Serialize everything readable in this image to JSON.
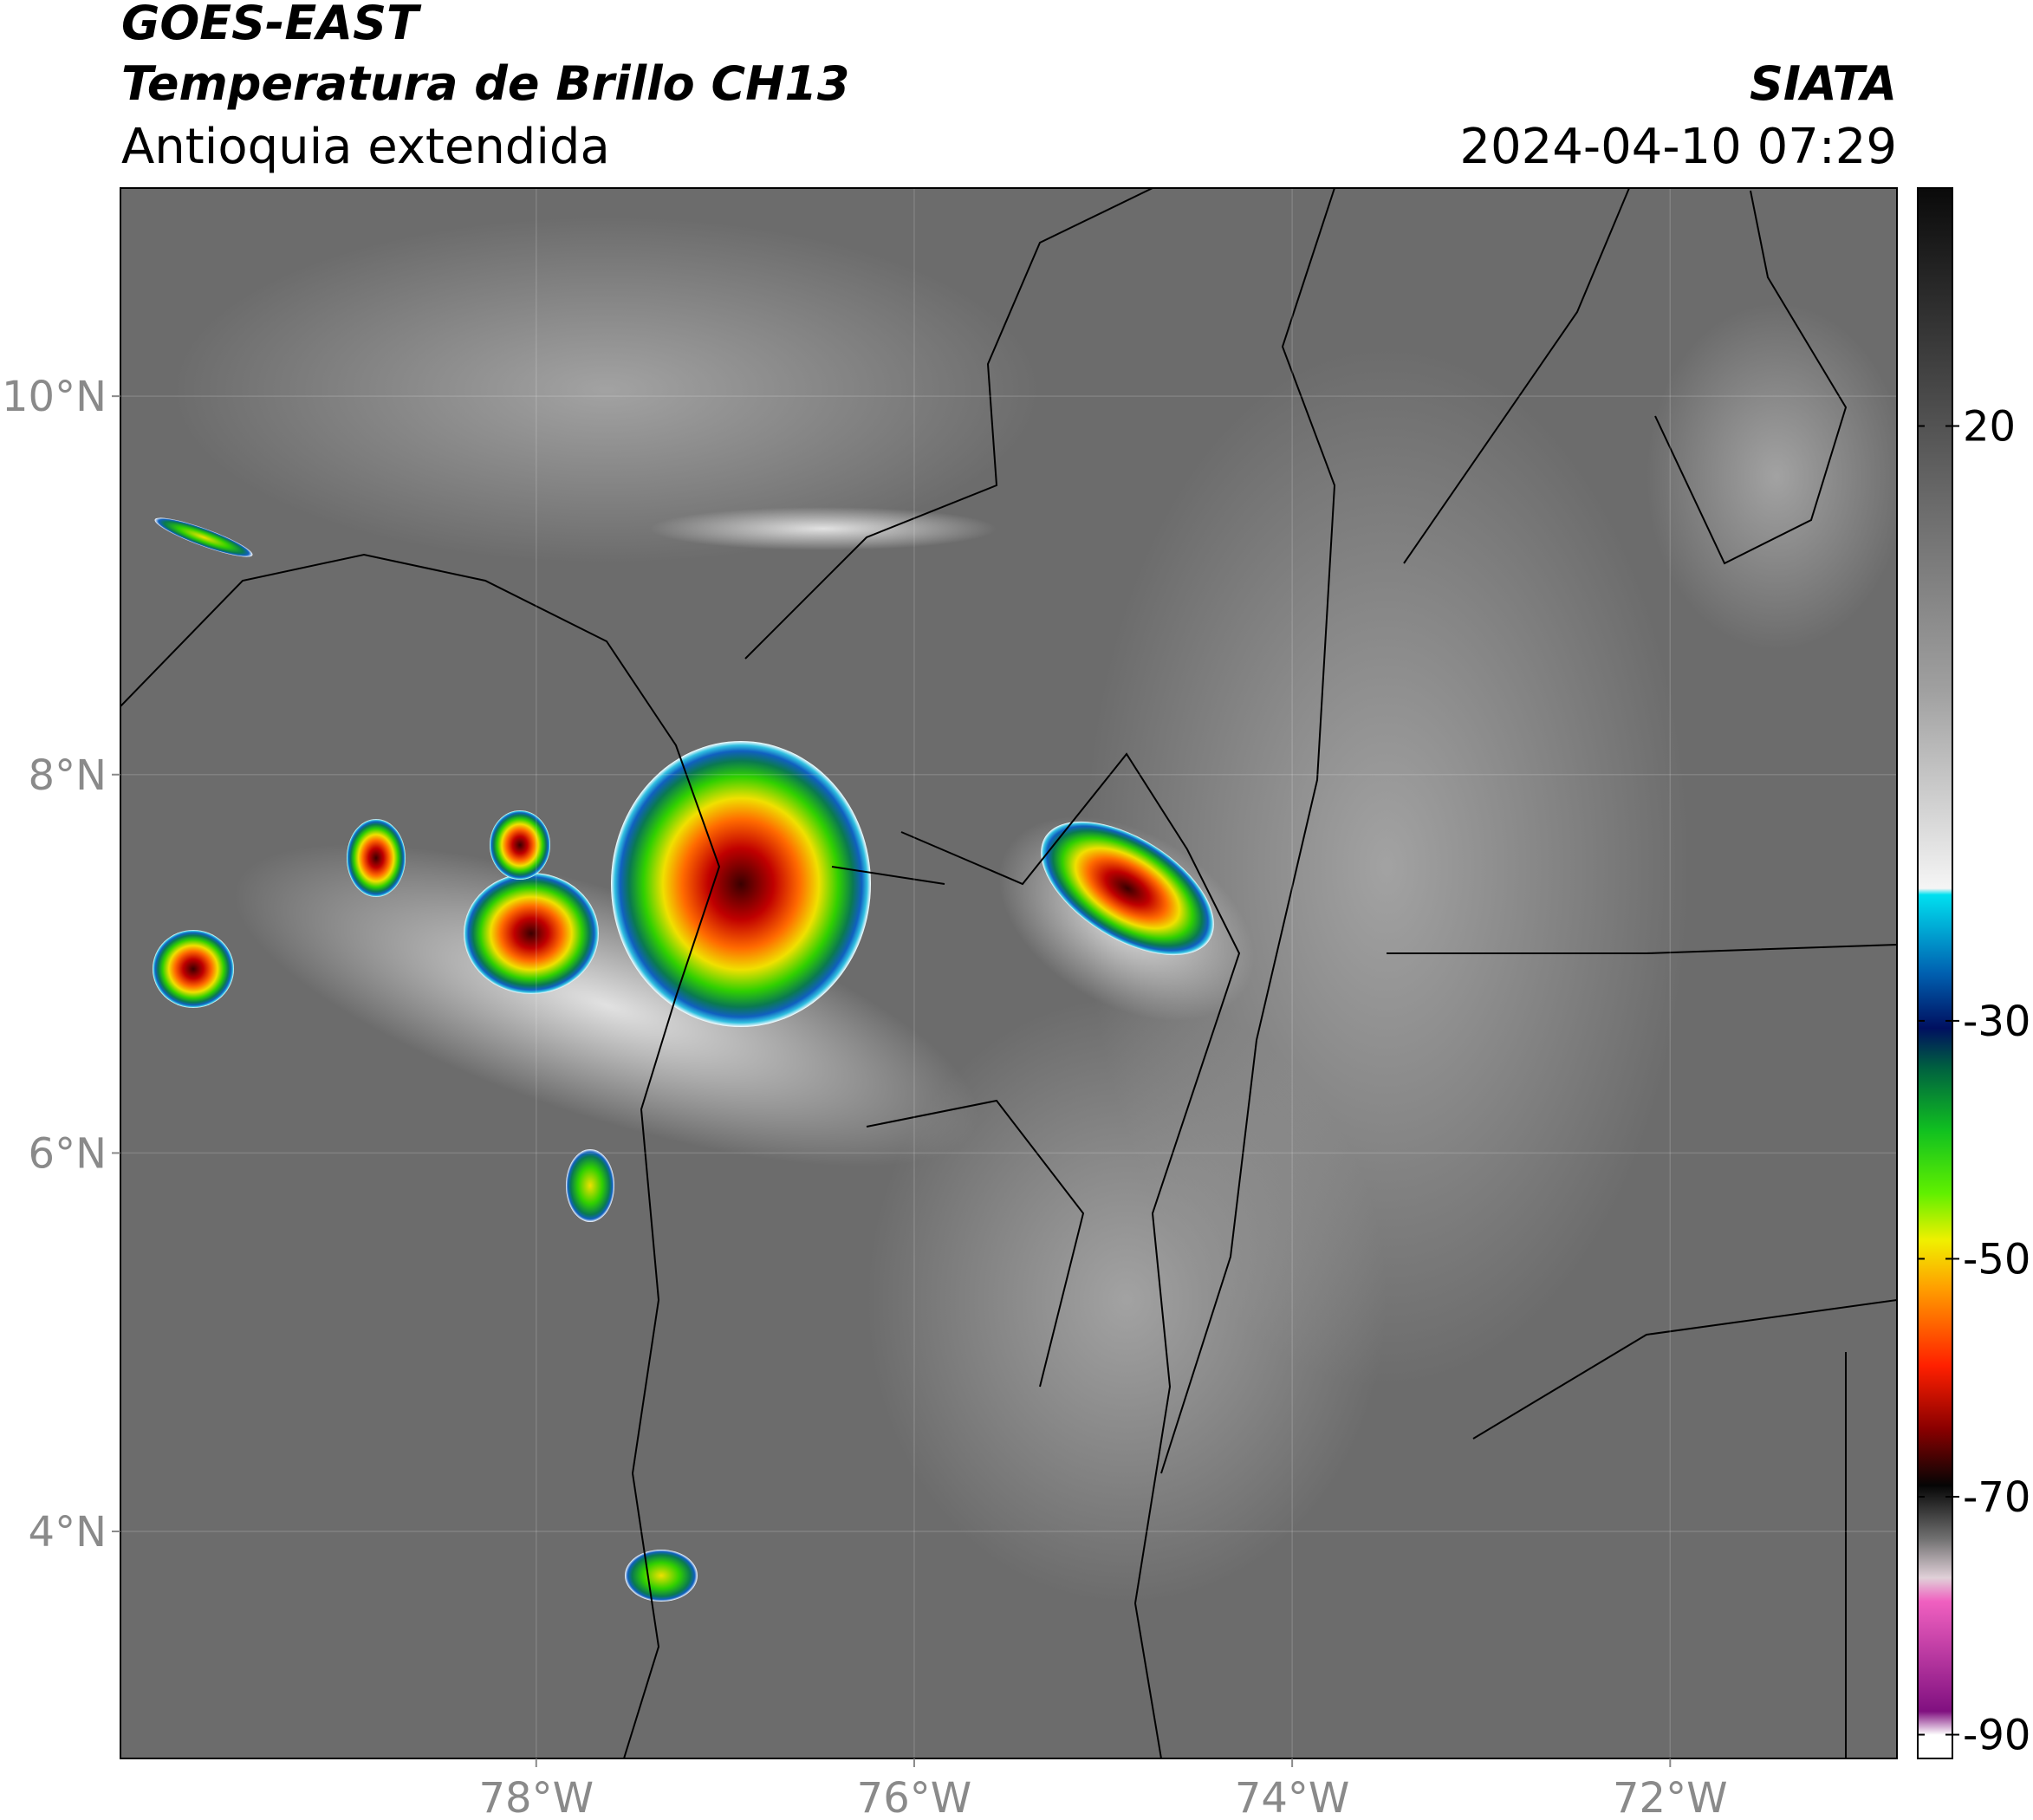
{
  "chart_data": {
    "type": "map",
    "title": "GOES-EAST",
    "subtitle": "Temperatura de Brillo CH13",
    "region": "Antioquia extendida",
    "source": "SIATA",
    "datetime": "2024-04-10 07:29",
    "xlim": [
      -80.2,
      -70.8
    ],
    "ylim": [
      2.8,
      11.1
    ],
    "xticks": [
      {
        "value": -78,
        "label": "78°W"
      },
      {
        "value": -76,
        "label": "76°W"
      },
      {
        "value": -74,
        "label": "74°W"
      },
      {
        "value": -72,
        "label": "72°W"
      }
    ],
    "yticks": [
      {
        "value": 4,
        "label": "4°N"
      },
      {
        "value": 6,
        "label": "6°N"
      },
      {
        "value": 8,
        "label": "8°N"
      },
      {
        "value": 10,
        "label": "10°N"
      }
    ],
    "grid": true,
    "colorbar": {
      "lim": [
        -92,
        40
      ],
      "ticks": [
        20,
        -30,
        -50,
        -70,
        -90
      ]
    }
  }
}
